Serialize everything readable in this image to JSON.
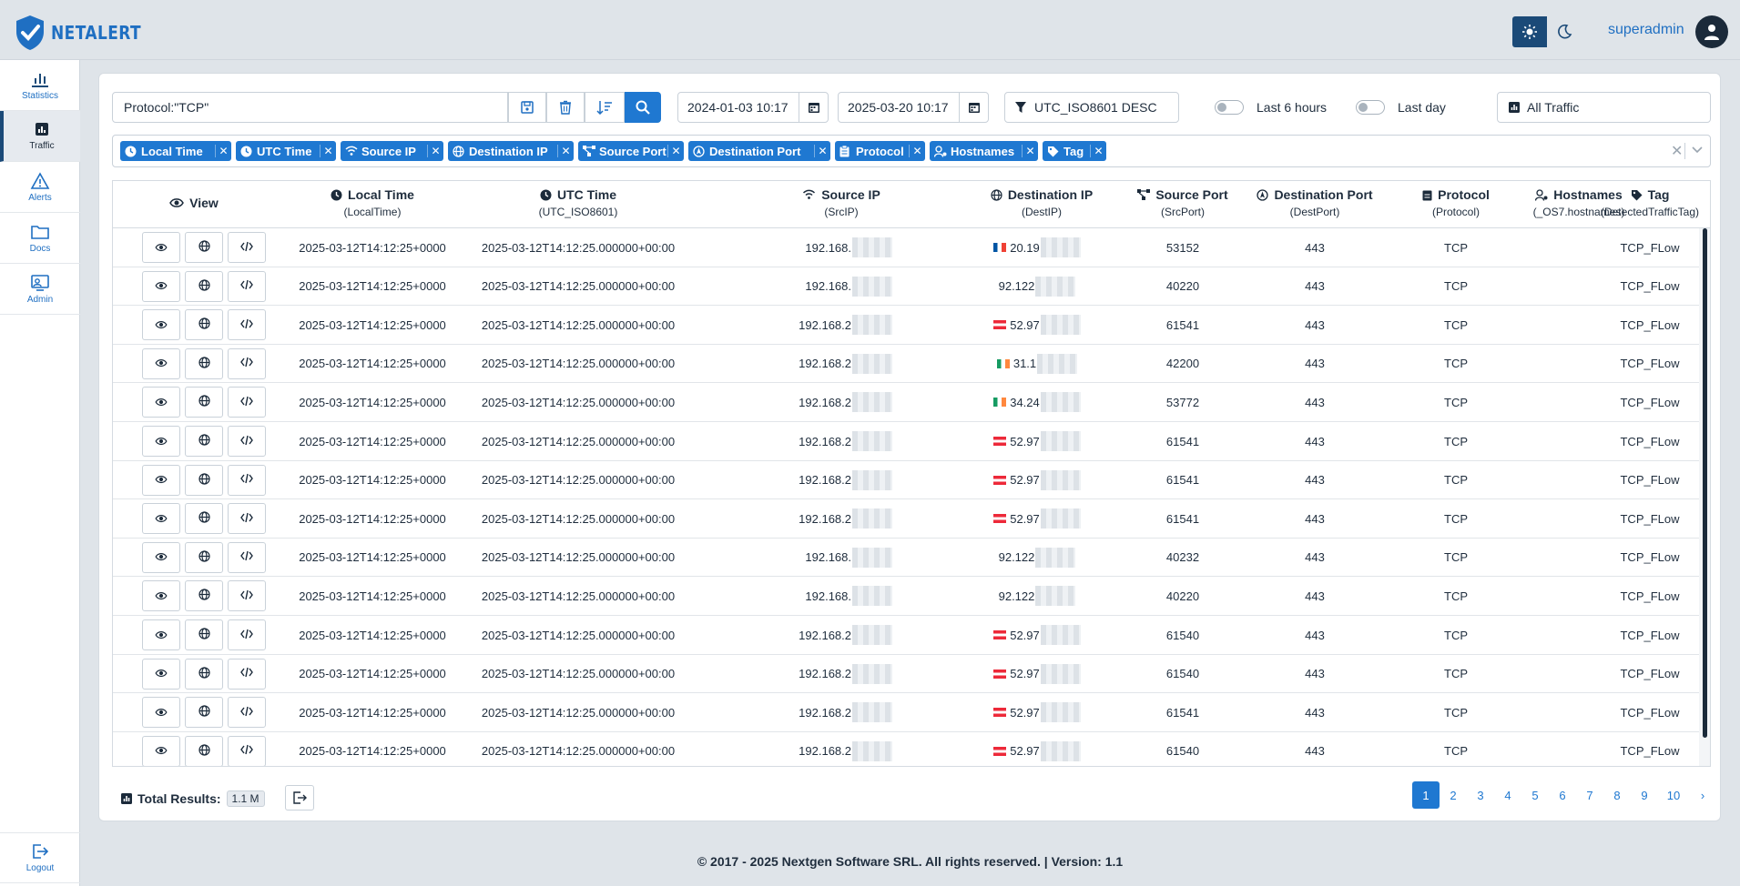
{
  "brand": {
    "name": "NETALERT"
  },
  "user": {
    "name": "superadmin"
  },
  "theme": {
    "light_icon": "sun-icon",
    "dark_icon": "moon-icon"
  },
  "sidebar": {
    "items": [
      {
        "label": "Statistics",
        "icon": "bar-chart-icon"
      },
      {
        "label": "Traffic",
        "icon": "traffic-chart-icon",
        "active": true
      },
      {
        "label": "Alerts",
        "icon": "warning-icon"
      },
      {
        "label": "Docs",
        "icon": "folder-icon"
      },
      {
        "label": "Admin",
        "icon": "admin-icon"
      }
    ],
    "logout": "Logout"
  },
  "filters": {
    "query": "Protocol:\"TCP\"",
    "date_from": "2024-01-03 10:17",
    "date_to": "2025-03-20 10:17",
    "sort": "UTC_ISO8601 DESC",
    "toggle_6h": "Last 6 hours",
    "toggle_day": "Last day",
    "traffic_select": "All Traffic"
  },
  "chips": [
    "Local Time",
    "UTC Time",
    "Source IP",
    "Destination IP",
    "Source Port",
    "Destination Port",
    "Protocol",
    "Hostnames",
    "Tag"
  ],
  "table": {
    "columns": [
      {
        "title": "View",
        "sub": ""
      },
      {
        "title": "Local Time",
        "sub": "(LocalTime)"
      },
      {
        "title": "UTC Time",
        "sub": "(UTC_ISO8601)"
      },
      {
        "title": "Source IP",
        "sub": "(SrcIP)"
      },
      {
        "title": "Destination IP",
        "sub": "(DestIP)"
      },
      {
        "title": "Source Port",
        "sub": "(SrcPort)"
      },
      {
        "title": "Destination Port",
        "sub": "(DestPort)"
      },
      {
        "title": "Protocol",
        "sub": "(Protocol)"
      },
      {
        "title": "Hostnames",
        "sub": "(_OS7.hostnames)"
      },
      {
        "title": "Tag",
        "sub": "(DetectedTrafficTag)"
      }
    ],
    "rows": [
      {
        "local": "2025-03-12T14:12:25+0000",
        "utc": "2025-03-12T14:12:25.000000+00:00",
        "src": "192.168.",
        "flag": "fr",
        "dst": "20.19",
        "sport": "53152",
        "dport": "443",
        "proto": "TCP",
        "host": "",
        "tag": "TCP_FLow"
      },
      {
        "local": "2025-03-12T14:12:25+0000",
        "utc": "2025-03-12T14:12:25.000000+00:00",
        "src": "192.168.",
        "flag": "",
        "dst": "92.122",
        "sport": "40220",
        "dport": "443",
        "proto": "TCP",
        "host": "",
        "tag": "TCP_FLow"
      },
      {
        "local": "2025-03-12T14:12:25+0000",
        "utc": "2025-03-12T14:12:25.000000+00:00",
        "src": "192.168.2",
        "flag": "at",
        "dst": "52.97",
        "sport": "61541",
        "dport": "443",
        "proto": "TCP",
        "host": "",
        "tag": "TCP_FLow"
      },
      {
        "local": "2025-03-12T14:12:25+0000",
        "utc": "2025-03-12T14:12:25.000000+00:00",
        "src": "192.168.2",
        "flag": "ie",
        "dst": "31.1",
        "sport": "42200",
        "dport": "443",
        "proto": "TCP",
        "host": "",
        "tag": "TCP_FLow"
      },
      {
        "local": "2025-03-12T14:12:25+0000",
        "utc": "2025-03-12T14:12:25.000000+00:00",
        "src": "192.168.2",
        "flag": "ie",
        "dst": "34.24",
        "sport": "53772",
        "dport": "443",
        "proto": "TCP",
        "host": "",
        "tag": "TCP_FLow"
      },
      {
        "local": "2025-03-12T14:12:25+0000",
        "utc": "2025-03-12T14:12:25.000000+00:00",
        "src": "192.168.2",
        "flag": "at",
        "dst": "52.97",
        "sport": "61541",
        "dport": "443",
        "proto": "TCP",
        "host": "",
        "tag": "TCP_FLow"
      },
      {
        "local": "2025-03-12T14:12:25+0000",
        "utc": "2025-03-12T14:12:25.000000+00:00",
        "src": "192.168.2",
        "flag": "at",
        "dst": "52.97",
        "sport": "61541",
        "dport": "443",
        "proto": "TCP",
        "host": "",
        "tag": "TCP_FLow"
      },
      {
        "local": "2025-03-12T14:12:25+0000",
        "utc": "2025-03-12T14:12:25.000000+00:00",
        "src": "192.168.2",
        "flag": "at",
        "dst": "52.97",
        "sport": "61541",
        "dport": "443",
        "proto": "TCP",
        "host": "",
        "tag": "TCP_FLow"
      },
      {
        "local": "2025-03-12T14:12:25+0000",
        "utc": "2025-03-12T14:12:25.000000+00:00",
        "src": "192.168.",
        "flag": "",
        "dst": "92.122",
        "sport": "40232",
        "dport": "443",
        "proto": "TCP",
        "host": "",
        "tag": "TCP_FLow"
      },
      {
        "local": "2025-03-12T14:12:25+0000",
        "utc": "2025-03-12T14:12:25.000000+00:00",
        "src": "192.168.",
        "flag": "",
        "dst": "92.122",
        "sport": "40220",
        "dport": "443",
        "proto": "TCP",
        "host": "",
        "tag": "TCP_FLow"
      },
      {
        "local": "2025-03-12T14:12:25+0000",
        "utc": "2025-03-12T14:12:25.000000+00:00",
        "src": "192.168.2",
        "flag": "at",
        "dst": "52.97",
        "sport": "61540",
        "dport": "443",
        "proto": "TCP",
        "host": "",
        "tag": "TCP_FLow"
      },
      {
        "local": "2025-03-12T14:12:25+0000",
        "utc": "2025-03-12T14:12:25.000000+00:00",
        "src": "192.168.2",
        "flag": "at",
        "dst": "52.97",
        "sport": "61540",
        "dport": "443",
        "proto": "TCP",
        "host": "",
        "tag": "TCP_FLow"
      },
      {
        "local": "2025-03-12T14:12:25+0000",
        "utc": "2025-03-12T14:12:25.000000+00:00",
        "src": "192.168.2",
        "flag": "at",
        "dst": "52.97",
        "sport": "61541",
        "dport": "443",
        "proto": "TCP",
        "host": "",
        "tag": "TCP_FLow"
      },
      {
        "local": "2025-03-12T14:12:25+0000",
        "utc": "2025-03-12T14:12:25.000000+00:00",
        "src": "192.168.2",
        "flag": "at",
        "dst": "52.97",
        "sport": "61540",
        "dport": "443",
        "proto": "TCP",
        "host": "",
        "tag": "TCP_FLow"
      }
    ]
  },
  "footer": {
    "total_label": "Total Results:",
    "total_value": "1.1 M",
    "pages": [
      "1",
      "2",
      "3",
      "4",
      "5",
      "6",
      "7",
      "8",
      "9",
      "10"
    ],
    "next": "›",
    "copyright": "© 2017 - 2025 Nextgen Software SRL. All rights reserved. | Version: 1.1"
  },
  "colors": {
    "accent": "#1f78d1",
    "navy": "#1b4a78",
    "brand": "#1f6fc2"
  }
}
